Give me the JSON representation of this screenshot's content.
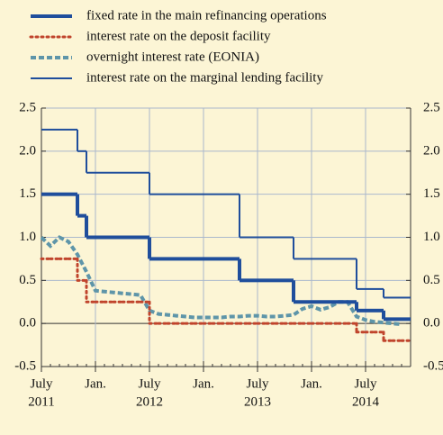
{
  "chart_data": {
    "type": "line",
    "legend": "top",
    "grid": true,
    "x": [
      "2011-07",
      "2011-08",
      "2011-09",
      "2011-10",
      "2011-11",
      "2011-12",
      "2012-01",
      "2012-02",
      "2012-03",
      "2012-04",
      "2012-05",
      "2012-06",
      "2012-07",
      "2012-08",
      "2012-09",
      "2012-10",
      "2012-11",
      "2012-12",
      "2013-01",
      "2013-02",
      "2013-03",
      "2013-04",
      "2013-05",
      "2013-06",
      "2013-07",
      "2013-08",
      "2013-09",
      "2013-10",
      "2013-11",
      "2013-12",
      "2014-01",
      "2014-02",
      "2014-03",
      "2014-04",
      "2014-05",
      "2014-06",
      "2014-07",
      "2014-08",
      "2014-09",
      "2014-10",
      "2014-11"
    ],
    "xlim": [
      "2011-07",
      "2014-12"
    ],
    "xticks": [
      {
        "value": "2011-07",
        "label": "July"
      },
      {
        "value": "2012-01",
        "label": "Jan."
      },
      {
        "value": "2012-07",
        "label": "July"
      },
      {
        "value": "2013-01",
        "label": "Jan."
      },
      {
        "value": "2013-07",
        "label": "July"
      },
      {
        "value": "2014-01",
        "label": "Jan."
      },
      {
        "value": "2014-07",
        "label": "July"
      }
    ],
    "x_year_labels": [
      {
        "value": "2011-07",
        "label": "2011"
      },
      {
        "value": "2012-07",
        "label": "2012"
      },
      {
        "value": "2013-07",
        "label": "2013"
      },
      {
        "value": "2014-07",
        "label": "2014"
      }
    ],
    "ylim": [
      -0.5,
      2.5
    ],
    "yticks": [
      {
        "value": -0.5,
        "label": "-0.5"
      },
      {
        "value": 0,
        "label": "0.0"
      },
      {
        "value": 0.5,
        "label": "0.5"
      },
      {
        "value": 1,
        "label": "1.0"
      },
      {
        "value": 1.5,
        "label": "1.5"
      },
      {
        "value": 2,
        "label": "2.0"
      },
      {
        "value": 2.5,
        "label": "2.5"
      }
    ],
    "series": [
      {
        "name": "fixed rate in the main refinancing operations",
        "color": "#1f4e9c",
        "line_style": "solid",
        "weight": "thick",
        "step": true,
        "values": [
          1.5,
          1.5,
          1.5,
          1.5,
          1.25,
          1.0,
          1.0,
          1.0,
          1.0,
          1.0,
          1.0,
          1.0,
          0.75,
          0.75,
          0.75,
          0.75,
          0.75,
          0.75,
          0.75,
          0.75,
          0.75,
          0.75,
          0.5,
          0.5,
          0.5,
          0.5,
          0.5,
          0.5,
          0.25,
          0.25,
          0.25,
          0.25,
          0.25,
          0.25,
          0.25,
          0.15,
          0.15,
          0.15,
          0.05,
          0.05,
          0.05
        ]
      },
      {
        "name": "interest rate on the deposit facility",
        "color": "#c0442c",
        "line_style": "dotted",
        "weight": "medium",
        "step": true,
        "values": [
          0.75,
          0.75,
          0.75,
          0.75,
          0.5,
          0.25,
          0.25,
          0.25,
          0.25,
          0.25,
          0.25,
          0.25,
          0,
          0,
          0,
          0,
          0,
          0,
          0,
          0,
          0,
          0,
          0,
          0,
          0,
          0,
          0,
          0,
          0,
          0,
          0,
          0,
          0,
          0,
          0,
          -0.1,
          -0.1,
          -0.1,
          -0.2,
          -0.2,
          -0.2
        ]
      },
      {
        "name": "overnight interest rate (EONIA)",
        "color": "#5e95a9",
        "line_style": "dashed",
        "weight": "thick",
        "step": false,
        "values": [
          1.0,
          0.9,
          1.0,
          0.95,
          0.8,
          0.6,
          0.38,
          0.37,
          0.36,
          0.35,
          0.34,
          0.33,
          0.15,
          0.11,
          0.1,
          0.09,
          0.08,
          0.07,
          0.07,
          0.07,
          0.07,
          0.08,
          0.08,
          0.09,
          0.09,
          0.08,
          0.08,
          0.09,
          0.1,
          0.17,
          0.2,
          0.16,
          0.19,
          0.25,
          0.25,
          0.08,
          0.04,
          0.02,
          0.01,
          0.0,
          -0.01
        ]
      },
      {
        "name": "interest rate on the marginal lending facility",
        "color": "#1f4e9c",
        "line_style": "solid",
        "weight": "thin",
        "step": true,
        "values": [
          2.25,
          2.25,
          2.25,
          2.25,
          2.0,
          1.75,
          1.75,
          1.75,
          1.75,
          1.75,
          1.75,
          1.75,
          1.5,
          1.5,
          1.5,
          1.5,
          1.5,
          1.5,
          1.5,
          1.5,
          1.5,
          1.5,
          1.0,
          1.0,
          1.0,
          1.0,
          1.0,
          1.0,
          0.75,
          0.75,
          0.75,
          0.75,
          0.75,
          0.75,
          0.75,
          0.4,
          0.4,
          0.4,
          0.3,
          0.3,
          0.3
        ]
      }
    ]
  }
}
